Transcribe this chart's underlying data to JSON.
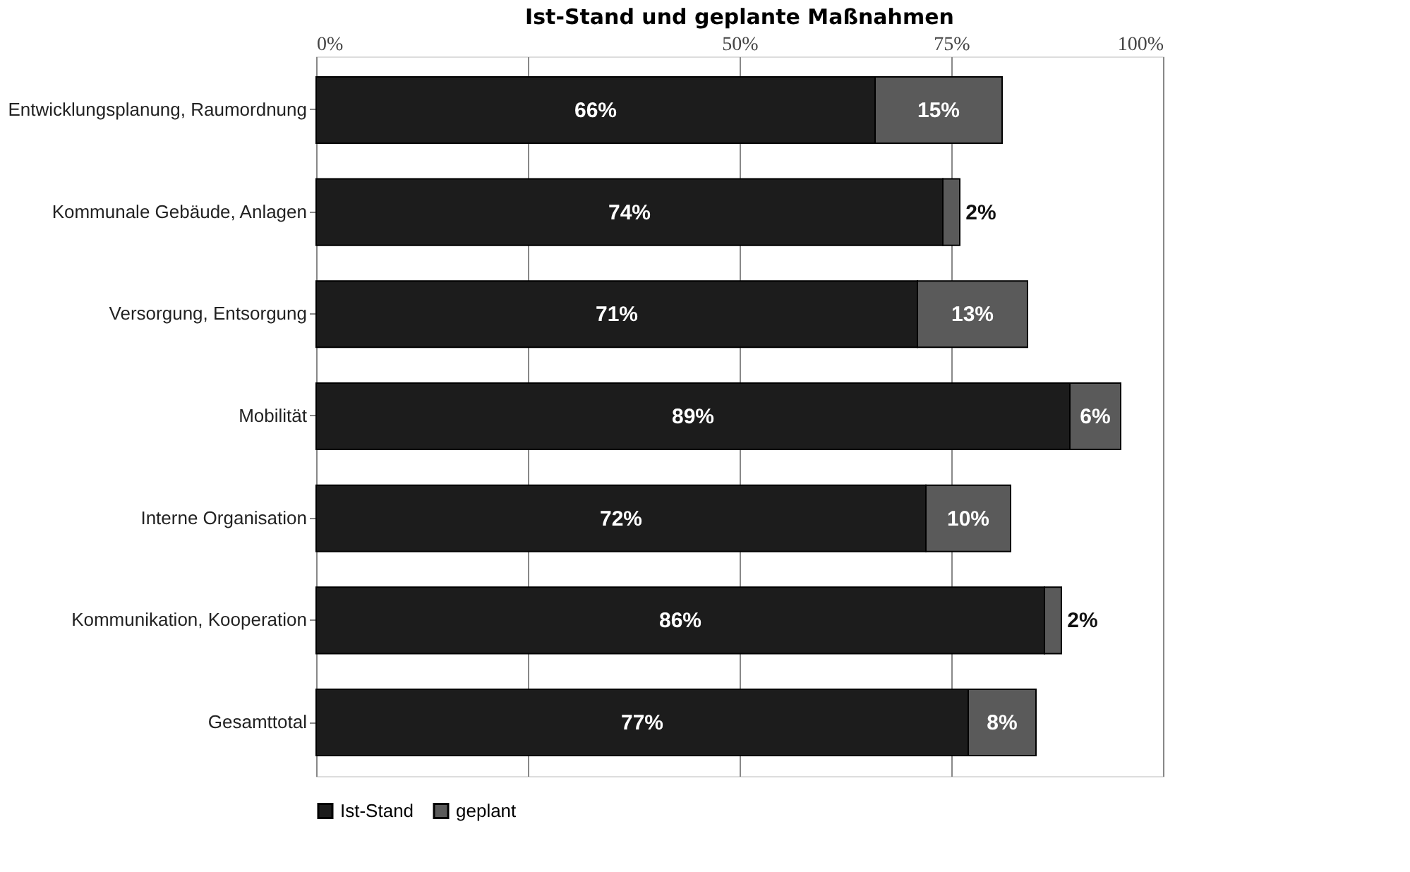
{
  "chart_data": {
    "type": "bar",
    "orientation": "horizontal",
    "stacked": true,
    "title": "Ist-Stand und geplante Maßnahmen",
    "categories": [
      "Entwicklungsplanung, Raumordnung",
      "Kommunale Gebäude, Anlagen",
      "Versorgung, Entsorgung",
      "Mobilität",
      "Interne Organisation",
      "Kommunikation, Kooperation",
      "Gesamttotal"
    ],
    "series": [
      {
        "name": "Ist-Stand",
        "color": "#1c1c1c",
        "values": [
          66,
          74,
          71,
          89,
          72,
          86,
          77
        ],
        "value_labels": [
          "66%",
          "74%",
          "71%",
          "89%",
          "72%",
          "86%",
          "77%"
        ]
      },
      {
        "name": "geplant",
        "color": "#5a5a5a",
        "values": [
          15,
          2,
          13,
          6,
          10,
          2,
          8
        ],
        "value_labels": [
          "15%",
          "2%",
          "13%",
          "6%",
          "10%",
          "2%",
          "8%"
        ]
      }
    ],
    "xlim": [
      0,
      100
    ],
    "xticks": [
      {
        "value": 0,
        "label": "0%"
      },
      {
        "value": 25,
        "label": null
      },
      {
        "value": 50,
        "label": "50%"
      },
      {
        "value": 75,
        "label": "75%"
      },
      {
        "value": 100,
        "label": "100%"
      }
    ],
    "grid": "x",
    "legend": "bottom"
  }
}
